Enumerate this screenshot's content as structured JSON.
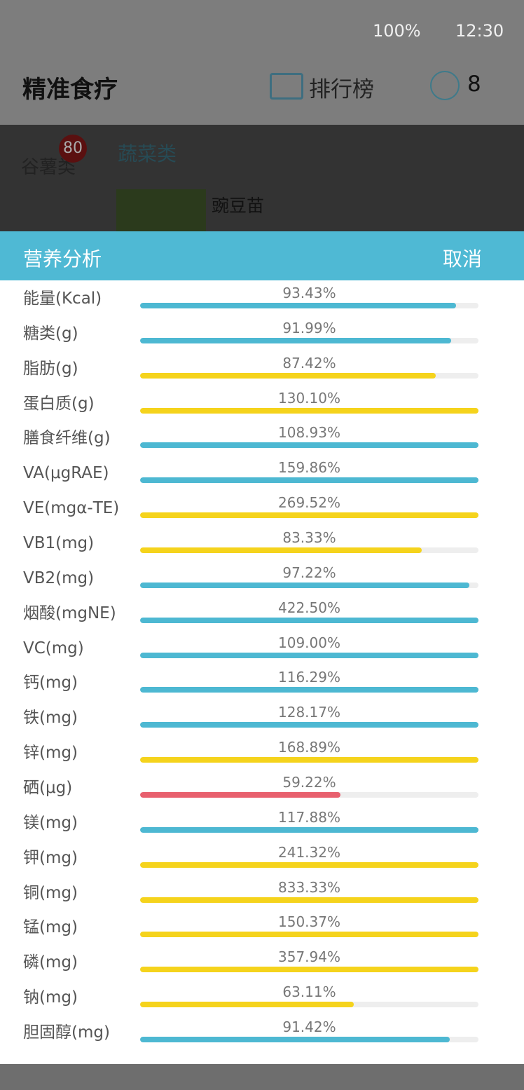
{
  "status_bar": {
    "battery": "100%",
    "time": "12:30"
  },
  "header": {
    "title": "精准食疗",
    "ranking": "排行榜",
    "coins": "8"
  },
  "background": {
    "category_1": "谷薯类",
    "badge": "80",
    "category_2": "蔬菜类",
    "food": "豌豆苗"
  },
  "dialog": {
    "title": "营养分析",
    "cancel": "取消",
    "items": [
      {
        "name": "能量(Kcal)",
        "value": 93.43,
        "value_label": "93.43%",
        "color": "#4db8d2"
      },
      {
        "name": "糖类(g)",
        "value": 91.99,
        "value_label": "91.99%",
        "color": "#4db8d2"
      },
      {
        "name": "脂肪(g)",
        "value": 87.42,
        "value_label": "87.42%",
        "color": "#f5d31c"
      },
      {
        "name": "蛋白质(g)",
        "value": 130.1,
        "value_label": "130.10%",
        "color": "#f5d31c"
      },
      {
        "name": "膳食纤维(g)",
        "value": 108.93,
        "value_label": "108.93%",
        "color": "#4db8d2"
      },
      {
        "name": "VA(μgRAE)",
        "value": 159.86,
        "value_label": "159.86%",
        "color": "#4db8d2"
      },
      {
        "name": "VE(mgα-TE)",
        "value": 269.52,
        "value_label": "269.52%",
        "color": "#f5d31c"
      },
      {
        "name": "VB1(mg)",
        "value": 83.33,
        "value_label": "83.33%",
        "color": "#f5d31c"
      },
      {
        "name": "VB2(mg)",
        "value": 97.22,
        "value_label": "97.22%",
        "color": "#4db8d2"
      },
      {
        "name": "烟酸(mgNE)",
        "value": 422.5,
        "value_label": "422.50%",
        "color": "#4db8d2"
      },
      {
        "name": "VC(mg)",
        "value": 109.0,
        "value_label": "109.00%",
        "color": "#4db8d2"
      },
      {
        "name": "钙(mg)",
        "value": 116.29,
        "value_label": "116.29%",
        "color": "#4db8d2"
      },
      {
        "name": "铁(mg)",
        "value": 128.17,
        "value_label": "128.17%",
        "color": "#4db8d2"
      },
      {
        "name": "锌(mg)",
        "value": 168.89,
        "value_label": "168.89%",
        "color": "#f5d31c"
      },
      {
        "name": "硒(μg)",
        "value": 59.22,
        "value_label": "59.22%",
        "color": "#e8606e"
      },
      {
        "name": "镁(mg)",
        "value": 117.88,
        "value_label": "117.88%",
        "color": "#4db8d2"
      },
      {
        "name": "钾(mg)",
        "value": 241.32,
        "value_label": "241.32%",
        "color": "#f5d31c"
      },
      {
        "name": "铜(mg)",
        "value": 833.33,
        "value_label": "833.33%",
        "color": "#f5d31c"
      },
      {
        "name": "锰(mg)",
        "value": 150.37,
        "value_label": "150.37%",
        "color": "#f5d31c"
      },
      {
        "name": "磷(mg)",
        "value": 357.94,
        "value_label": "357.94%",
        "color": "#f5d31c"
      },
      {
        "name": "钠(mg)",
        "value": 63.11,
        "value_label": "63.11%",
        "color": "#f5d31c"
      },
      {
        "name": "胆固醇(mg)",
        "value": 91.42,
        "value_label": "91.42%",
        "color": "#4db8d2"
      }
    ]
  }
}
